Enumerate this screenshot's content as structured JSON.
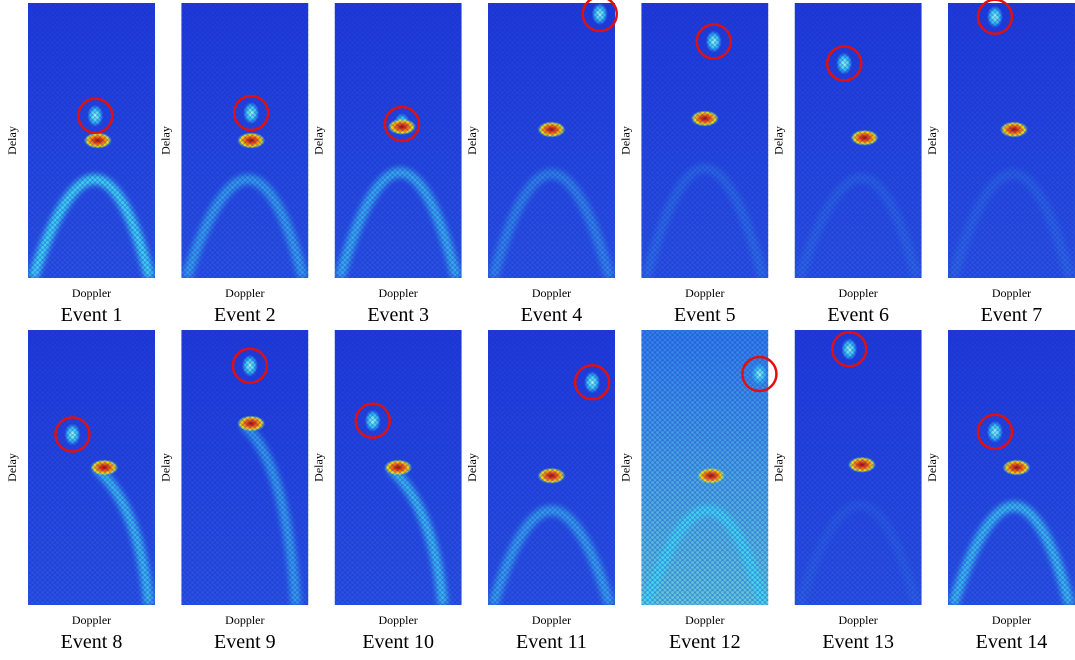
{
  "figure": {
    "panels": [
      {
        "title": "Event 1",
        "x_label": "Doppler",
        "y_label": "Delay"
      },
      {
        "title": "Event 2",
        "x_label": "Doppler",
        "y_label": "Delay"
      },
      {
        "title": "Event 3",
        "x_label": "Doppler",
        "y_label": "Delay"
      },
      {
        "title": "Event 4",
        "x_label": "Doppler",
        "y_label": "Delay"
      },
      {
        "title": "Event 5",
        "x_label": "Doppler",
        "y_label": "Delay"
      },
      {
        "title": "Event 6",
        "x_label": "Doppler",
        "y_label": "Delay"
      },
      {
        "title": "Event 7",
        "x_label": "Doppler",
        "y_label": "Delay"
      },
      {
        "title": "Event 8",
        "x_label": "Doppler",
        "y_label": "Delay"
      },
      {
        "title": "Event 9",
        "x_label": "Doppler",
        "y_label": "Delay"
      },
      {
        "title": "Event 10",
        "x_label": "Doppler",
        "y_label": "Delay"
      },
      {
        "title": "Event 11",
        "x_label": "Doppler",
        "y_label": "Delay"
      },
      {
        "title": "Event 12",
        "x_label": "Doppler",
        "y_label": "Delay"
      },
      {
        "title": "Event 13",
        "x_label": "Doppler",
        "y_label": "Delay"
      },
      {
        "title": "Event 14",
        "x_label": "Doppler",
        "y_label": "Delay"
      }
    ]
  }
}
